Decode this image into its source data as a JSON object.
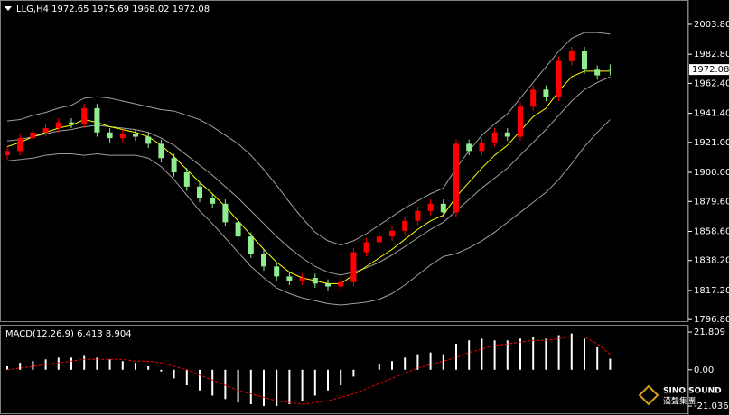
{
  "chart_data": [
    {
      "type": "candlestick",
      "title": "LLG,H4 1972.65 1975.69 1968.02 1972.08",
      "open": [
        1912,
        1915,
        1924,
        1928,
        1931,
        1935,
        1934,
        1945,
        1928,
        1924,
        1927,
        1925,
        1920,
        1910,
        1900,
        1890,
        1882,
        1878,
        1865,
        1855,
        1843,
        1834,
        1827,
        1824,
        1826,
        1822,
        1820,
        1823,
        1844,
        1851,
        1855,
        1859,
        1866,
        1873,
        1878,
        1872,
        1920,
        1915,
        1921,
        1928,
        1925,
        1946,
        1958,
        1953,
        1978,
        1985,
        1972,
        1972.65
      ],
      "high": [
        1918,
        1927,
        1931,
        1934,
        1938,
        1938,
        1948,
        1948,
        1931,
        1930,
        1930,
        1928,
        1923,
        1913,
        1903,
        1893,
        1885,
        1881,
        1868,
        1858,
        1846,
        1837,
        1830,
        1829,
        1829,
        1825,
        1826,
        1847,
        1854,
        1858,
        1862,
        1869,
        1876,
        1881,
        1881,
        1923,
        1923,
        1924,
        1931,
        1931,
        1949,
        1961,
        1961,
        1981,
        1988,
        1988,
        1975,
        1975.69
      ],
      "low": [
        1909,
        1912,
        1921,
        1925,
        1928,
        1931,
        1931,
        1925,
        1921,
        1921,
        1922,
        1917,
        1907,
        1897,
        1887,
        1879,
        1875,
        1862,
        1852,
        1840,
        1831,
        1824,
        1821,
        1821,
        1819,
        1817,
        1817,
        1820,
        1841,
        1848,
        1852,
        1856,
        1863,
        1870,
        1869,
        1869,
        1912,
        1912,
        1918,
        1922,
        1922,
        1943,
        1950,
        1950,
        1975,
        1969,
        1965,
        1968.02
      ],
      "close": [
        1915,
        1924,
        1928,
        1931,
        1935,
        1934,
        1945,
        1928,
        1924,
        1927,
        1925,
        1920,
        1910,
        1900,
        1890,
        1882,
        1878,
        1865,
        1855,
        1843,
        1834,
        1827,
        1824,
        1826,
        1822,
        1820,
        1823,
        1844,
        1851,
        1855,
        1859,
        1866,
        1873,
        1878,
        1872,
        1920,
        1915,
        1921,
        1928,
        1925,
        1946,
        1958,
        1953,
        1978,
        1985,
        1972,
        1968,
        1972.08
      ],
      "up_color": "#ff0000",
      "down_color": "#90ee90",
      "series": [
        {
          "color": "#a0a0a0",
          "values": [
            1936,
            1937,
            1940,
            1942,
            1945,
            1947,
            1952,
            1953,
            1952,
            1950,
            1948,
            1946,
            1944,
            1943,
            1940,
            1937,
            1932,
            1926,
            1920,
            1912,
            1902,
            1891,
            1879,
            1868,
            1858,
            1852,
            1849,
            1852,
            1857,
            1863,
            1869,
            1875,
            1880,
            1885,
            1889,
            1903,
            1915,
            1926,
            1934,
            1941,
            1952,
            1963,
            1974,
            1985,
            1994,
            1998,
            1998,
            1997
          ]
        },
        {
          "color": "#a0a0a0",
          "values": [
            1922,
            1923,
            1925,
            1927,
            1929,
            1930,
            1932,
            1933,
            1932,
            1931,
            1930,
            1928,
            1924,
            1919,
            1912,
            1905,
            1898,
            1890,
            1882,
            1873,
            1864,
            1855,
            1847,
            1840,
            1834,
            1830,
            1828,
            1830,
            1833,
            1837,
            1842,
            1848,
            1854,
            1860,
            1865,
            1873,
            1881,
            1889,
            1896,
            1903,
            1912,
            1921,
            1930,
            1940,
            1950,
            1958,
            1963,
            1967
          ]
        },
        {
          "color": "#a0a0a0",
          "values": [
            1908,
            1909,
            1910,
            1912,
            1913,
            1913,
            1912,
            1913,
            1912,
            1912,
            1912,
            1910,
            1904,
            1895,
            1884,
            1873,
            1864,
            1854,
            1844,
            1834,
            1826,
            1819,
            1815,
            1812,
            1810,
            1808,
            1807,
            1808,
            1809,
            1811,
            1815,
            1821,
            1828,
            1835,
            1841,
            1843,
            1847,
            1852,
            1858,
            1865,
            1872,
            1879,
            1886,
            1895,
            1906,
            1918,
            1928,
            1937
          ]
        },
        {
          "color": "#ffff00",
          "values": [
            1918,
            1921,
            1925,
            1928,
            1931,
            1933,
            1937,
            1935,
            1932,
            1930,
            1928,
            1925,
            1919,
            1911,
            1902,
            1893,
            1885,
            1876,
            1866,
            1856,
            1846,
            1837,
            1830,
            1826,
            1824,
            1822,
            1822,
            1828,
            1834,
            1840,
            1846,
            1853,
            1860,
            1866,
            1870,
            1883,
            1893,
            1903,
            1912,
            1919,
            1929,
            1939,
            1945,
            1957,
            1967,
            1971,
            1971,
            1971
          ]
        }
      ],
      "ylim": [
        1795,
        2019.6
      ],
      "yticks": [
        {
          "value": 2003.8,
          "label": "2003.80"
        },
        {
          "value": 1982.8,
          "label": "1982.80"
        },
        {
          "value": 1962.4,
          "label": "1962.40"
        },
        {
          "value": 1941.4,
          "label": "1941.40"
        },
        {
          "value": 1921,
          "label": "1921.00"
        },
        {
          "value": 1900,
          "label": "1900.00"
        },
        {
          "value": 1879.6,
          "label": "1879.60"
        },
        {
          "value": 1858.6,
          "label": "1858.60"
        },
        {
          "value": 1838.2,
          "label": "1838.20"
        },
        {
          "value": 1817.2,
          "label": "1817.20"
        },
        {
          "value": 1796.8,
          "label": "1796.80"
        }
      ]
    },
    {
      "type": "macd",
      "title": "MACD(12,26,9) 6.413 8.904",
      "series": [
        {
          "color": "#ffffff",
          "values": [
            2,
            4,
            5,
            6,
            7,
            7,
            8,
            7,
            6,
            5,
            4,
            2,
            -1,
            -5,
            -9,
            -12,
            -15,
            -17,
            -19,
            -20,
            -21,
            -21,
            -20,
            -18,
            -15,
            -12,
            -9,
            -4,
            0,
            3,
            5,
            7,
            9,
            10,
            9,
            15,
            17,
            18,
            17,
            17,
            18,
            19,
            18,
            20,
            21,
            18,
            13,
            6.413
          ]
        },
        {
          "color": "#ff0000",
          "values": [
            0,
            1,
            2,
            3,
            4,
            5,
            6,
            6,
            6,
            6,
            5,
            5,
            4,
            2,
            0,
            -3,
            -6,
            -9,
            -12,
            -14,
            -16,
            -18,
            -19,
            -20,
            -19,
            -18,
            -16,
            -14,
            -11,
            -8,
            -5,
            -2,
            1,
            3,
            5,
            7,
            10,
            12,
            14,
            15,
            16,
            17,
            17,
            18,
            19,
            19,
            15,
            8.904
          ]
        }
      ],
      "ylim": [
        -25.2,
        25.5
      ],
      "yticks": [
        21.809,
        {
          "value": 0,
          "label": "0.00"
        },
        -21.036
      ]
    }
  ],
  "logo": {
    "name": "SINO SOUND",
    "chinese": "漢聲集團"
  }
}
